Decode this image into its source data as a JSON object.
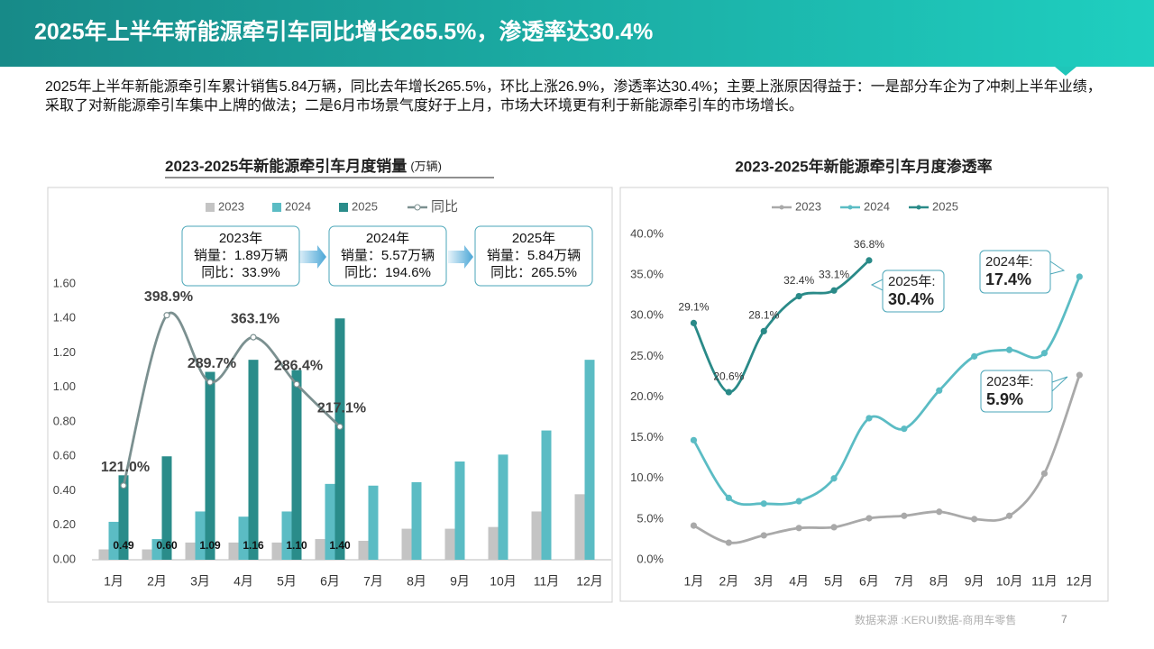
{
  "header": {
    "title": "2025年上半年新能源牵引车同比增长265.5%，渗透率达30.4%"
  },
  "paragraph": "2025年上半年新能源牵引车累计销售5.84万辆，同比去年增长265.5%，环比上涨26.9%，渗透率达30.4%；主要上涨原因得益于：一是部分车企为了冲刺上半年业绩，采取了对新能源牵引车集中上牌的做法；二是6月市场景气度好于上月，市场大环境更有利于新能源牵引车的市场增长。",
  "footer": {
    "source": "数据来源 :KERUI数据-商用车零售",
    "page": "7"
  },
  "chart_data": [
    {
      "type": "bar",
      "title": "2023-2025年新能源牵引车月度销量",
      "unit": "(万辆)",
      "categories": [
        "1月",
        "2月",
        "3月",
        "4月",
        "5月",
        "6月",
        "7月",
        "8月",
        "9月",
        "10月",
        "11月",
        "12月"
      ],
      "ylim": [
        0,
        1.6
      ],
      "yticks": [
        {
          "value": 0,
          "label": "0.00"
        },
        {
          "value": 0.2,
          "label": "0.20"
        },
        {
          "value": 0.4,
          "label": "0.40"
        },
        {
          "value": 0.6,
          "label": "0.60"
        },
        {
          "value": 0.8,
          "label": "0.80"
        },
        {
          "value": 1.0,
          "label": "1.00"
        },
        {
          "value": 1.2,
          "label": "1.20"
        },
        {
          "value": 1.4,
          "label": "1.40"
        },
        {
          "value": 1.6,
          "label": "1.60"
        }
      ],
      "y2lim": [
        0,
        450
      ],
      "series": [
        {
          "name": "2023",
          "color": "#c4c4c4",
          "values": [
            0.06,
            0.06,
            0.1,
            0.1,
            0.1,
            0.12,
            0.11,
            0.18,
            0.18,
            0.19,
            0.28,
            0.38
          ]
        },
        {
          "name": "2024",
          "color": "#5bbcc4",
          "values": [
            0.22,
            0.12,
            0.28,
            0.25,
            0.28,
            0.44,
            0.43,
            0.45,
            0.57,
            0.61,
            0.75,
            1.16
          ]
        },
        {
          "name": "2025",
          "color": "#2a8c8a",
          "values": [
            0.49,
            0.6,
            1.09,
            1.16,
            1.1,
            1.4,
            null,
            null,
            null,
            null,
            null,
            null
          ],
          "value_labels": [
            "0.49",
            "0.60",
            "1.09",
            "1.16",
            "1.10",
            "1.40",
            null,
            null,
            null,
            null,
            null,
            null
          ]
        },
        {
          "name": "同比",
          "type": "line",
          "axis": "y2",
          "color": "#7b9090",
          "values": [
            121.0,
            398.9,
            289.7,
            363.1,
            286.4,
            217.1,
            null,
            null,
            null,
            null,
            null,
            null
          ],
          "value_labels": [
            "121.0%",
            "398.9%",
            "289.7%",
            "363.1%",
            "286.4%",
            "217.1%",
            null,
            null,
            null,
            null,
            null,
            null
          ]
        }
      ],
      "annotations": [
        {
          "title": "2023年",
          "lines": [
            "销量：1.89万辆",
            "同比：33.9%"
          ]
        },
        {
          "title": "2024年",
          "lines": [
            "销量：5.57万辆",
            "同比：194.6%"
          ]
        },
        {
          "title": "2025年",
          "lines": [
            "销量：5.84万辆",
            "同比：265.5%"
          ]
        }
      ]
    },
    {
      "type": "line",
      "title": "2023-2025年新能源牵引车月度渗透率",
      "categories": [
        "1月",
        "2月",
        "3月",
        "4月",
        "5月",
        "6月",
        "7月",
        "8月",
        "9月",
        "10月",
        "11月",
        "12月"
      ],
      "ylim": [
        0,
        40
      ],
      "yticks": [
        {
          "value": 0,
          "label": "0.0%"
        },
        {
          "value": 5,
          "label": "5.0%"
        },
        {
          "value": 10,
          "label": "10.0%"
        },
        {
          "value": 15,
          "label": "15.0%"
        },
        {
          "value": 20,
          "label": "20.0%"
        },
        {
          "value": 25,
          "label": "25.0%"
        },
        {
          "value": 30,
          "label": "30.0%"
        },
        {
          "value": 35,
          "label": "35.0%"
        },
        {
          "value": 40,
          "label": "40.0%"
        }
      ],
      "series": [
        {
          "name": "2023",
          "color": "#a9a9a9",
          "values": [
            4.2,
            2.1,
            3.0,
            3.9,
            4.0,
            5.1,
            5.4,
            5.9,
            5.0,
            5.4,
            10.6,
            22.7
          ]
        },
        {
          "name": "2024",
          "color": "#5bbcc4",
          "values": [
            14.7,
            7.6,
            6.9,
            7.2,
            10.0,
            17.4,
            16.1,
            20.8,
            25.0,
            25.8,
            25.4,
            34.8
          ]
        },
        {
          "name": "2025",
          "color": "#2a8a88",
          "values": [
            29.1,
            20.6,
            28.1,
            32.4,
            33.1,
            36.8,
            null,
            null,
            null,
            null,
            null,
            null
          ],
          "value_labels": [
            "29.1%",
            "20.6%",
            "28.1%",
            "32.4%",
            "33.1%",
            "36.8%",
            null,
            null,
            null,
            null,
            null,
            null
          ]
        }
      ],
      "annotations": [
        {
          "title": "2025年:",
          "value": "30.4%"
        },
        {
          "title": "2024年:",
          "value": "17.4%"
        },
        {
          "title": "2023年:",
          "value": "5.9%"
        }
      ]
    }
  ]
}
